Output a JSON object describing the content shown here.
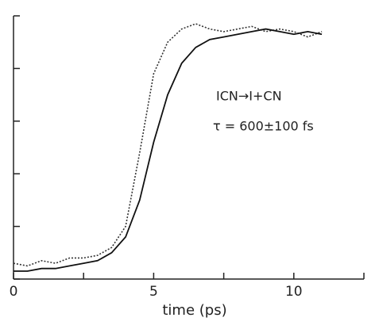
{
  "chart_data": {
    "type": "line",
    "x_label": "time (ps)",
    "annotations": [
      "ICN→I+CN",
      "τ = 600±100 fs"
    ],
    "x": [
      0,
      0.5,
      1,
      1.5,
      2,
      2.5,
      3,
      3.5,
      4,
      4.5,
      5,
      5.5,
      6,
      6.5,
      7,
      7.5,
      8,
      8.5,
      9,
      9.5,
      10,
      10.5,
      11
    ],
    "series": [
      {
        "color": "#333333",
        "style": "dotted",
        "values": [
          0.3,
          0.25,
          0.35,
          0.3,
          0.4,
          0.4,
          0.45,
          0.6,
          1.0,
          2.4,
          3.9,
          4.5,
          4.75,
          4.85,
          4.75,
          4.7,
          4.75,
          4.8,
          4.7,
          4.75,
          4.7,
          4.6,
          4.7
        ]
      },
      {
        "color": "#111111",
        "style": "solid",
        "values": [
          0.15,
          0.15,
          0.2,
          0.2,
          0.25,
          0.3,
          0.35,
          0.5,
          0.8,
          1.5,
          2.6,
          3.5,
          4.1,
          4.4,
          4.55,
          4.6,
          4.65,
          4.7,
          4.75,
          4.7,
          4.65,
          4.7,
          4.65
        ]
      }
    ],
    "xlim": [
      0,
      12.5
    ],
    "xticks": [
      0,
      5,
      10
    ],
    "x_minor_ticks": [
      2.5,
      7.5,
      12.5
    ],
    "ylim": [
      0,
      5
    ],
    "y_tick_marks": [
      0,
      1,
      2,
      3,
      4,
      5
    ]
  }
}
